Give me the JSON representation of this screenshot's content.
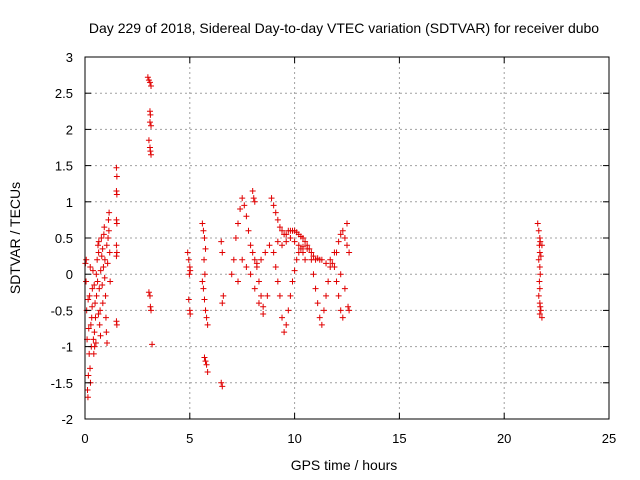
{
  "chart_data": {
    "type": "scatter",
    "title": "Day 229 of 2018, Sidereal Day-to-day VTEC variation (SDTVAR) for receiver dubo",
    "xlabel": "GPS time / hours",
    "ylabel": "SDTVAR / TECUs",
    "xlim": [
      0,
      25
    ],
    "ylim": [
      -2,
      3
    ],
    "xticks": [
      0,
      5,
      10,
      15,
      20,
      25
    ],
    "xtick_labels": [
      "0",
      "5",
      "10",
      "15",
      "20",
      "25"
    ],
    "yticks": [
      -2,
      -1.5,
      -1,
      -0.5,
      0,
      0.5,
      1,
      1.5,
      2,
      2.5,
      3
    ],
    "ytick_labels": [
      "-2",
      "-1.5",
      "-1",
      "-0.5",
      "0",
      "0.5",
      "1",
      "1.5",
      "2",
      "2.5",
      "3"
    ],
    "grid": true,
    "marker": "+",
    "marker_color": "#e00000",
    "series": [
      {
        "name": "SDTVAR",
        "points": [
          [
            0.02,
            0.15
          ],
          [
            0.05,
            -0.1
          ],
          [
            0.08,
            -0.5
          ],
          [
            0.1,
            -0.9
          ],
          [
            0.12,
            -1.6
          ],
          [
            0.14,
            -1.7
          ],
          [
            0.16,
            -1.4
          ],
          [
            0.2,
            -1.1
          ],
          [
            0.22,
            -0.3
          ],
          [
            0.25,
            0.1
          ],
          [
            0.28,
            -0.7
          ],
          [
            0.3,
            -1.0
          ],
          [
            0.32,
            -0.6
          ],
          [
            0.35,
            -0.2
          ],
          [
            0.38,
            0.05
          ],
          [
            0.4,
            -0.9
          ],
          [
            0.42,
            -1.1
          ],
          [
            0.45,
            -0.8
          ],
          [
            0.48,
            -0.4
          ],
          [
            0.5,
            -0.6
          ],
          [
            0.52,
            -0.95
          ],
          [
            0.55,
            -0.3
          ],
          [
            0.58,
            0.2
          ],
          [
            0.6,
            -0.1
          ],
          [
            0.62,
            0.4
          ],
          [
            0.65,
            0.3
          ],
          [
            0.68,
            -0.2
          ],
          [
            0.7,
            -0.7
          ],
          [
            0.72,
            -0.5
          ],
          [
            0.75,
            0.05
          ],
          [
            0.78,
            0.5
          ],
          [
            0.8,
            0.25
          ],
          [
            0.82,
            -0.15
          ],
          [
            0.85,
            -0.4
          ],
          [
            0.88,
            0.1
          ],
          [
            0.9,
            0.55
          ],
          [
            0.92,
            0.65
          ],
          [
            0.95,
            0.2
          ],
          [
            0.98,
            -0.3
          ],
          [
            1.0,
            -0.6
          ],
          [
            1.02,
            -0.8
          ],
          [
            1.05,
            -0.95
          ],
          [
            1.08,
            0.15
          ],
          [
            1.1,
            0.5
          ],
          [
            1.12,
            0.75
          ],
          [
            1.15,
            0.85
          ],
          [
            1.18,
            0.3
          ],
          [
            1.2,
            -0.1
          ],
          [
            0.15,
            -0.35
          ],
          [
            0.18,
            -0.75
          ],
          [
            0.24,
            -1.3
          ],
          [
            0.34,
            -0.45
          ],
          [
            0.44,
            -0.15
          ],
          [
            0.54,
            0.0
          ],
          [
            0.64,
            -0.55
          ],
          [
            0.74,
            -0.85
          ],
          [
            0.84,
            0.35
          ],
          [
            0.94,
            -0.05
          ],
          [
            1.04,
            0.4
          ],
          [
            1.14,
            0.6
          ],
          [
            0.06,
            0.2
          ],
          [
            0.26,
            -1.5
          ],
          [
            0.46,
            -1.0
          ],
          [
            0.66,
            0.45
          ],
          [
            1.5,
            1.47
          ],
          [
            1.52,
            1.35
          ],
          [
            1.5,
            1.15
          ],
          [
            1.52,
            1.1
          ],
          [
            1.5,
            0.75
          ],
          [
            1.52,
            0.7
          ],
          [
            1.5,
            0.4
          ],
          [
            1.52,
            0.3
          ],
          [
            1.5,
            0.25
          ],
          [
            1.5,
            -0.65
          ],
          [
            1.52,
            -0.7
          ],
          [
            3.0,
            2.72
          ],
          [
            3.05,
            2.68
          ],
          [
            3.1,
            2.65
          ],
          [
            3.15,
            2.6
          ],
          [
            3.1,
            2.25
          ],
          [
            3.12,
            2.2
          ],
          [
            3.1,
            2.1
          ],
          [
            3.15,
            2.05
          ],
          [
            3.05,
            1.85
          ],
          [
            3.1,
            1.75
          ],
          [
            3.12,
            1.7
          ],
          [
            3.15,
            1.65
          ],
          [
            3.05,
            -0.25
          ],
          [
            3.1,
            -0.3
          ],
          [
            3.12,
            -0.45
          ],
          [
            3.15,
            -0.5
          ],
          [
            3.2,
            -0.97
          ],
          [
            4.9,
            0.3
          ],
          [
            4.95,
            0.2
          ],
          [
            5.0,
            0.1
          ],
          [
            4.98,
            0.0
          ],
          [
            5.02,
            0.05
          ],
          [
            4.95,
            -0.35
          ],
          [
            5.0,
            -0.5
          ],
          [
            5.02,
            -0.55
          ],
          [
            5.6,
            0.7
          ],
          [
            5.65,
            0.6
          ],
          [
            5.7,
            0.5
          ],
          [
            5.75,
            0.35
          ],
          [
            5.68,
            0.2
          ],
          [
            5.72,
            0.0
          ],
          [
            5.6,
            -0.1
          ],
          [
            5.65,
            -0.2
          ],
          [
            5.7,
            -0.35
          ],
          [
            5.75,
            -0.5
          ],
          [
            5.8,
            -0.6
          ],
          [
            5.85,
            -0.7
          ],
          [
            5.7,
            -1.15
          ],
          [
            5.75,
            -1.2
          ],
          [
            5.8,
            -1.25
          ],
          [
            5.85,
            -1.35
          ],
          [
            6.5,
            0.45
          ],
          [
            6.55,
            0.3
          ],
          [
            6.6,
            -0.3
          ],
          [
            6.55,
            -0.4
          ],
          [
            6.5,
            -1.5
          ],
          [
            6.55,
            -1.55
          ],
          [
            7.0,
            0.0
          ],
          [
            7.1,
            0.2
          ],
          [
            7.2,
            0.5
          ],
          [
            7.3,
            0.7
          ],
          [
            7.4,
            0.9
          ],
          [
            7.5,
            1.05
          ],
          [
            7.6,
            0.95
          ],
          [
            7.7,
            0.8
          ],
          [
            7.8,
            0.6
          ],
          [
            7.9,
            0.4
          ],
          [
            8.0,
            0.3
          ],
          [
            8.1,
            0.2
          ],
          [
            8.2,
            0.1
          ],
          [
            8.3,
            -0.1
          ],
          [
            8.4,
            -0.3
          ],
          [
            8.5,
            -0.45
          ],
          [
            7.3,
            -0.1
          ],
          [
            7.5,
            0.2
          ],
          [
            7.7,
            0.1
          ],
          [
            7.9,
            0.0
          ],
          [
            8.1,
            -0.2
          ],
          [
            8.3,
            -0.4
          ],
          [
            8.5,
            -0.55
          ],
          [
            8.7,
            -0.3
          ],
          [
            8.0,
            1.15
          ],
          [
            8.05,
            1.05
          ],
          [
            8.1,
            1.0
          ],
          [
            8.2,
            0.15
          ],
          [
            8.4,
            0.2
          ],
          [
            8.6,
            0.3
          ],
          [
            8.8,
            0.4
          ],
          [
            8.9,
            1.05
          ],
          [
            9.0,
            0.95
          ],
          [
            9.1,
            0.85
          ],
          [
            9.2,
            0.75
          ],
          [
            9.3,
            0.65
          ],
          [
            9.4,
            0.6
          ],
          [
            9.5,
            0.55
          ],
          [
            9.6,
            0.55
          ],
          [
            9.7,
            0.6
          ],
          [
            9.8,
            0.6
          ],
          [
            9.9,
            0.6
          ],
          [
            10.0,
            0.6
          ],
          [
            10.1,
            0.58
          ],
          [
            10.2,
            0.55
          ],
          [
            10.3,
            0.52
          ],
          [
            10.4,
            0.5
          ],
          [
            10.5,
            0.45
          ],
          [
            10.6,
            0.4
          ],
          [
            10.7,
            0.35
          ],
          [
            10.8,
            0.3
          ],
          [
            10.9,
            0.25
          ],
          [
            11.0,
            0.2
          ],
          [
            11.1,
            0.22
          ],
          [
            11.2,
            0.2
          ],
          [
            9.0,
            0.3
          ],
          [
            9.1,
            0.1
          ],
          [
            9.2,
            -0.1
          ],
          [
            9.3,
            -0.3
          ],
          [
            9.4,
            -0.6
          ],
          [
            9.5,
            -0.8
          ],
          [
            9.6,
            -0.7
          ],
          [
            9.7,
            -0.5
          ],
          [
            9.8,
            -0.3
          ],
          [
            9.9,
            -0.1
          ],
          [
            10.0,
            0.05
          ],
          [
            10.1,
            0.2
          ],
          [
            10.2,
            0.3
          ],
          [
            10.3,
            0.35
          ],
          [
            10.4,
            0.3
          ],
          [
            10.5,
            0.2
          ],
          [
            9.2,
            0.45
          ],
          [
            9.4,
            0.4
          ],
          [
            9.6,
            0.45
          ],
          [
            9.8,
            0.5
          ],
          [
            10.0,
            0.45
          ],
          [
            10.2,
            0.4
          ],
          [
            10.4,
            0.38
          ],
          [
            10.6,
            0.35
          ],
          [
            10.8,
            0.2
          ],
          [
            10.9,
            0.0
          ],
          [
            11.0,
            -0.2
          ],
          [
            11.1,
            -0.4
          ],
          [
            11.2,
            -0.6
          ],
          [
            11.3,
            -0.7
          ],
          [
            11.4,
            -0.5
          ],
          [
            11.5,
            -0.3
          ],
          [
            11.6,
            -0.1
          ],
          [
            11.7,
            0.1
          ],
          [
            11.8,
            0.15
          ],
          [
            11.9,
            0.1
          ],
          [
            12.0,
            -0.1
          ],
          [
            12.1,
            -0.3
          ],
          [
            12.2,
            -0.5
          ],
          [
            12.3,
            -0.6
          ],
          [
            11.3,
            0.2
          ],
          [
            11.5,
            0.15
          ],
          [
            11.7,
            0.2
          ],
          [
            11.9,
            0.3
          ],
          [
            12.1,
            0.45
          ],
          [
            12.2,
            0.55
          ],
          [
            12.3,
            0.6
          ],
          [
            12.4,
            0.5
          ],
          [
            12.5,
            0.4
          ],
          [
            12.6,
            0.3
          ],
          [
            12.5,
            0.7
          ],
          [
            12.55,
            -0.45
          ],
          [
            12.6,
            -0.5
          ],
          [
            12.2,
            0.0
          ],
          [
            12.4,
            -0.2
          ],
          [
            12.0,
            0.3
          ],
          [
            21.6,
            0.7
          ],
          [
            21.65,
            0.6
          ],
          [
            21.7,
            0.5
          ],
          [
            21.72,
            0.45
          ],
          [
            21.68,
            0.4
          ],
          [
            21.7,
            0.3
          ],
          [
            21.65,
            0.2
          ],
          [
            21.7,
            0.1
          ],
          [
            21.72,
            0.0
          ],
          [
            21.68,
            -0.1
          ],
          [
            21.7,
            -0.2
          ],
          [
            21.65,
            -0.3
          ],
          [
            21.7,
            -0.4
          ],
          [
            21.72,
            -0.45
          ],
          [
            21.75,
            -0.5
          ],
          [
            21.7,
            -0.55
          ],
          [
            21.8,
            -0.6
          ],
          [
            21.75,
            0.25
          ],
          [
            21.8,
            0.4
          ]
        ]
      }
    ]
  }
}
